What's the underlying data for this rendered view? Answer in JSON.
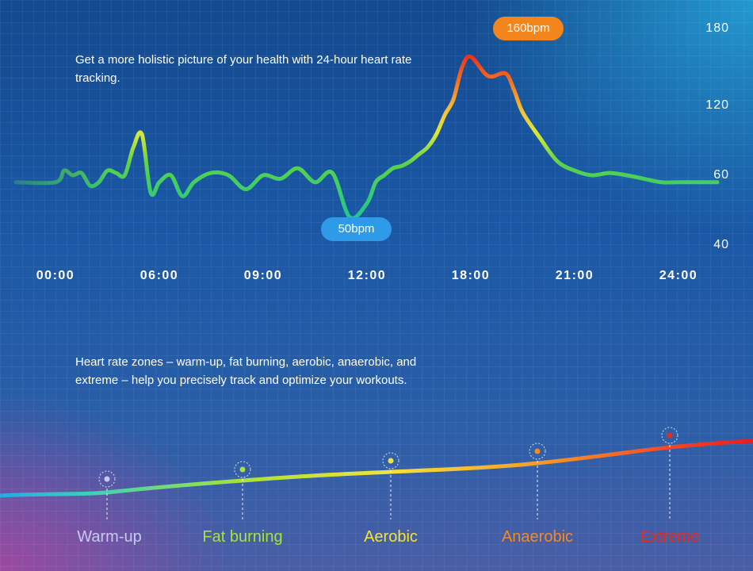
{
  "intro_text": "Get a more holistic picture of your health with 24-hour heart rate tracking.",
  "zones_text": "Heart rate zones – warm-up, fat burning, aerobic, anaerobic, and extreme – help you precisely track and optimize your workouts.",
  "callouts": {
    "max": "160bpm",
    "min": "50bpm"
  },
  "colors": {
    "warm_up": "#c8c8f2",
    "fat_burning": "#a8e23a",
    "aerobic": "#f2e23a",
    "anaerobic": "#f58a22",
    "extreme": "#e82a1e",
    "callout_max": "#f3851d",
    "callout_min": "#2f9be8"
  },
  "chart_data": [
    {
      "type": "line",
      "title": "",
      "xlabel": "",
      "ylabel": "",
      "x_tick_labels": [
        "00:00",
        "06:00",
        "09:00",
        "12:00",
        "18:00",
        "21:00",
        "24:00"
      ],
      "y_tick_labels": [
        "180",
        "120",
        "60",
        "40"
      ],
      "series": [
        {
          "x": [
            "00:00",
            "00:30",
            "01:00",
            "01:30",
            "02:00",
            "02:30",
            "03:00",
            "03:30",
            "04:00",
            "04:30",
            "05:00",
            "05:30",
            "06:00",
            "06:20",
            "06:40",
            "07:00",
            "07:30",
            "08:00",
            "08:30",
            "09:00",
            "09:30",
            "10:00",
            "10:30",
            "11:00",
            "11:30",
            "12:00",
            "12:30",
            "13:00",
            "13:30",
            "14:00",
            "14:30",
            "15:00",
            "15:30",
            "16:00",
            "16:30",
            "17:00",
            "17:30",
            "18:00",
            "18:30",
            "19:00",
            "19:15",
            "19:30",
            "20:00",
            "20:30",
            "21:00",
            "21:30",
            "22:00",
            "22:30",
            "23:00",
            "23:30",
            "24:00"
          ],
          "values": [
            58,
            64,
            60,
            62,
            57,
            58,
            64,
            62,
            60,
            84,
            95,
            55,
            58,
            60,
            54,
            58,
            62,
            60,
            56,
            60,
            59,
            66,
            58,
            62,
            48,
            52,
            58,
            60,
            66,
            68,
            72,
            78,
            84,
            95,
            112,
            125,
            150,
            158,
            143,
            145,
            132,
            114,
            92,
            72,
            64,
            60,
            62,
            60,
            59,
            58,
            58
          ]
        }
      ],
      "callouts": [
        {
          "label": "160bpm",
          "x": "19:40",
          "y": 160
        },
        {
          "label": "50bpm",
          "x": "12:00",
          "y": 50
        }
      ]
    },
    {
      "type": "line",
      "title": "",
      "categories": [
        "Warm-up",
        "Fat burning",
        "Aerobic",
        "Anaerobic",
        "Extreme"
      ],
      "series": [
        {
          "values": [
            1,
            2,
            3,
            4,
            5
          ]
        }
      ]
    }
  ]
}
